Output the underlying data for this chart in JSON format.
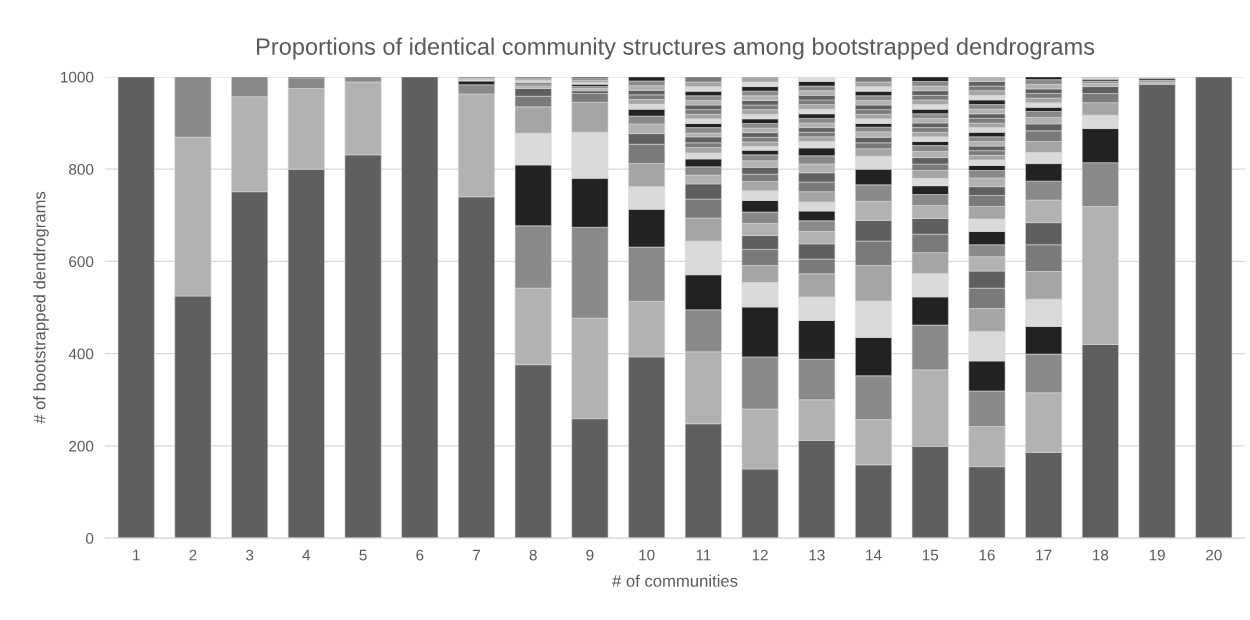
{
  "chart_data": {
    "type": "bar",
    "stacked": true,
    "title": "Proportions of identical community structures among bootstrapped dendrograms",
    "xlabel": "# of communities",
    "ylabel": "# of bootstrapped dendrograms",
    "categories": [
      "1",
      "2",
      "3",
      "4",
      "5",
      "6",
      "7",
      "8",
      "9",
      "10",
      "11",
      "12",
      "13",
      "14",
      "15",
      "16",
      "17",
      "18",
      "19",
      "20"
    ],
    "ylim": [
      0,
      1000
    ],
    "yticks": [
      0,
      200,
      400,
      600,
      800,
      1000
    ],
    "grid": "y",
    "series": [
      {
        "color": "#5f5f5f",
        "values": [
          1000,
          525,
          751,
          800,
          831,
          1000,
          740,
          376,
          259,
          393,
          248,
          150,
          212,
          159,
          199,
          155,
          186,
          420,
          984,
          1000
        ]
      },
      {
        "color": "#b2b2b2",
        "values": [
          null,
          344,
          206,
          175,
          158,
          null,
          223,
          166,
          218,
          120,
          156,
          130,
          88,
          98,
          166,
          87,
          129,
          299,
          5,
          null
        ]
      },
      {
        "color": "#898989",
        "values": [
          null,
          131,
          43,
          23,
          11,
          null,
          20,
          135,
          197,
          118,
          91,
          113,
          88,
          95,
          97,
          77,
          84,
          95,
          4,
          null
        ]
      },
      {
        "color": "#222222",
        "values": [
          null,
          null,
          null,
          2,
          null,
          null,
          8,
          132,
          106,
          82,
          76,
          108,
          84,
          83,
          61,
          65,
          60,
          74,
          4,
          null
        ]
      },
      {
        "color": "#dadada",
        "values": [
          null,
          null,
          null,
          null,
          null,
          null,
          3,
          69,
          100,
          49,
          73,
          53,
          51,
          79,
          51,
          64,
          59,
          29,
          3,
          null
        ]
      },
      {
        "color": "#a5a5a5",
        "values": [
          null,
          null,
          null,
          null,
          null,
          null,
          3,
          57,
          65,
          50,
          50,
          37,
          50,
          77,
          45,
          50,
          60,
          27,
          null,
          null
        ]
      },
      {
        "color": "#7a7a7a",
        "values": [
          null,
          null,
          null,
          null,
          null,
          null,
          3,
          23,
          19,
          42,
          41,
          35,
          32,
          53,
          40,
          44,
          58,
          20,
          null,
          null
        ]
      },
      {
        "color": "#5f5f5f",
        "values": [
          null,
          null,
          null,
          null,
          null,
          null,
          null,
          17,
          6,
          23,
          33,
          30,
          33,
          45,
          34,
          37,
          48,
          15,
          null,
          null
        ]
      },
      {
        "color": "#b2b2b2",
        "values": [
          null,
          null,
          null,
          null,
          null,
          null,
          null,
          5,
          5,
          21,
          19,
          26,
          27,
          41,
          28,
          31,
          49,
          7,
          null,
          null
        ]
      },
      {
        "color": "#898989",
        "values": [
          null,
          null,
          null,
          null,
          null,
          null,
          null,
          5,
          4,
          17,
          18,
          25,
          23,
          36,
          24,
          26,
          41,
          5,
          null,
          null
        ]
      },
      {
        "color": "#222222",
        "values": [
          null,
          null,
          null,
          null,
          null,
          null,
          null,
          3,
          5,
          15,
          17,
          25,
          21,
          34,
          19,
          29,
          38,
          4,
          null,
          null
        ]
      },
      {
        "color": "#dadada",
        "values": [
          null,
          null,
          null,
          null,
          null,
          null,
          null,
          4,
          4,
          11,
          13,
          21,
          20,
          28,
          16,
          27,
          24,
          3,
          null,
          null
        ]
      },
      {
        "color": "#a5a5a5",
        "values": [
          null,
          null,
          null,
          null,
          null,
          null,
          null,
          4,
          4,
          10,
          12,
          20,
          22,
          16,
          17,
          27,
          24,
          2,
          null,
          null
        ]
      },
      {
        "color": "#7a7a7a",
        "values": [
          null,
          null,
          null,
          null,
          null,
          null,
          null,
          4,
          4,
          10,
          10,
          16,
          21,
          13,
          14,
          24,
          23,
          null,
          null,
          null
        ]
      },
      {
        "color": "#5f5f5f",
        "values": [
          null,
          null,
          null,
          null,
          null,
          null,
          null,
          null,
          4,
          10,
          13,
          15,
          20,
          12,
          14,
          19,
          15,
          null,
          null,
          null
        ]
      },
      {
        "color": "#b2b2b2",
        "values": [
          null,
          null,
          null,
          null,
          null,
          null,
          null,
          null,
          null,
          10,
          8,
          14,
          19,
          12,
          13,
          19,
          14,
          null,
          null,
          null
        ]
      },
      {
        "color": "#898989",
        "values": [
          null,
          null,
          null,
          null,
          null,
          null,
          null,
          null,
          null,
          10,
          12,
          13,
          18,
          10,
          13,
          16,
          13,
          null,
          null,
          null
        ]
      },
      {
        "color": "#222222",
        "values": [
          null,
          null,
          null,
          null,
          null,
          null,
          null,
          null,
          null,
          9,
          9,
          10,
          17,
          8,
          9,
          11,
          9,
          null,
          null,
          null
        ]
      },
      {
        "color": "#dadada",
        "values": [
          null,
          null,
          null,
          null,
          null,
          null,
          null,
          null,
          null,
          null,
          10,
          8,
          14,
          10,
          10,
          12,
          10,
          null,
          null,
          null
        ]
      },
      {
        "color": "#a5a5a5",
        "values": [
          null,
          null,
          null,
          null,
          null,
          null,
          null,
          null,
          null,
          null,
          10,
          10,
          10,
          10,
          10,
          10,
          10,
          null,
          null,
          null
        ]
      },
      {
        "color": "#7a7a7a",
        "values": [
          null,
          null,
          null,
          null,
          null,
          null,
          null,
          null,
          null,
          null,
          10,
          10,
          10,
          10,
          10,
          10,
          10,
          null,
          null,
          null
        ]
      },
      {
        "color": "#5f5f5f",
        "values": [
          null,
          null,
          null,
          null,
          null,
          null,
          null,
          null,
          null,
          null,
          10,
          10,
          10,
          10,
          10,
          10,
          10,
          null,
          null,
          null
        ]
      },
      {
        "color": "#b2b2b2",
        "values": [
          null,
          null,
          null,
          null,
          null,
          null,
          null,
          null,
          null,
          null,
          10,
          10,
          10,
          10,
          10,
          10,
          10,
          null,
          null,
          null
        ]
      },
      {
        "color": "#898989",
        "values": [
          null,
          null,
          null,
          null,
          null,
          null,
          null,
          null,
          null,
          null,
          10,
          10,
          10,
          10,
          10,
          10,
          10,
          null,
          null,
          null
        ]
      },
      {
        "color": "#222222",
        "values": [
          null,
          null,
          null,
          null,
          null,
          null,
          null,
          null,
          null,
          null,
          10,
          10,
          10,
          10,
          10,
          10,
          6,
          null,
          null,
          null
        ]
      },
      {
        "color": "#dadada",
        "values": [
          null,
          null,
          null,
          null,
          null,
          null,
          null,
          null,
          null,
          null,
          10,
          10,
          10,
          10,
          10,
          10,
          null,
          null,
          null,
          null
        ]
      },
      {
        "color": "#a5a5a5",
        "values": [
          null,
          null,
          null,
          null,
          null,
          null,
          null,
          null,
          null,
          null,
          10,
          10,
          10,
          10,
          10,
          10,
          null,
          null,
          null,
          null
        ]
      },
      {
        "color": "#7a7a7a",
        "values": [
          null,
          null,
          null,
          null,
          null,
          null,
          null,
          null,
          null,
          null,
          11,
          10,
          10,
          11,
          10,
          10,
          null,
          null,
          null,
          null
        ]
      },
      {
        "color": "#5f5f5f",
        "values": [
          null,
          null,
          null,
          null,
          null,
          null,
          null,
          null,
          null,
          null,
          null,
          10,
          10,
          null,
          10,
          10,
          null,
          null,
          null,
          null
        ]
      },
      {
        "color": "#b2b2b2",
        "values": [
          null,
          null,
          null,
          null,
          null,
          null,
          null,
          null,
          null,
          null,
          null,
          10,
          10,
          null,
          10,
          10,
          null,
          null,
          null,
          null
        ]
      },
      {
        "color": "#898989",
        "values": [
          null,
          null,
          null,
          null,
          null,
          null,
          null,
          null,
          null,
          null,
          null,
          10,
          10,
          null,
          10,
          10,
          null,
          null,
          null,
          null
        ]
      },
      {
        "color": "#222222",
        "values": [
          null,
          null,
          null,
          null,
          null,
          null,
          null,
          null,
          null,
          null,
          null,
          10,
          10,
          null,
          10,
          10,
          null,
          null,
          null,
          null
        ]
      },
      {
        "color": "#dadada",
        "values": [
          null,
          null,
          null,
          null,
          null,
          null,
          null,
          null,
          null,
          null,
          null,
          10,
          10,
          null,
          null,
          10,
          null,
          null,
          null,
          null
        ]
      },
      {
        "color": "#a5a5a5",
        "values": [
          null,
          null,
          null,
          null,
          null,
          null,
          null,
          null,
          null,
          null,
          null,
          11,
          null,
          null,
          null,
          10,
          null,
          null,
          null,
          null
        ]
      },
      {
        "color": "#7a7a7a",
        "values": [
          null,
          null,
          null,
          null,
          null,
          null,
          null,
          null,
          null,
          null,
          null,
          null,
          null,
          null,
          null,
          10,
          null,
          null,
          null,
          null
        ]
      },
      {
        "color": "#5f5f5f",
        "values": [
          null,
          null,
          null,
          null,
          null,
          null,
          null,
          null,
          null,
          null,
          null,
          null,
          null,
          null,
          null,
          10,
          null,
          null,
          null,
          null
        ]
      },
      {
        "color": "#b2b2b2",
        "values": [
          null,
          null,
          null,
          null,
          null,
          null,
          null,
          null,
          null,
          null,
          null,
          null,
          null,
          null,
          null,
          10,
          null,
          null,
          null,
          null
        ]
      }
    ]
  }
}
